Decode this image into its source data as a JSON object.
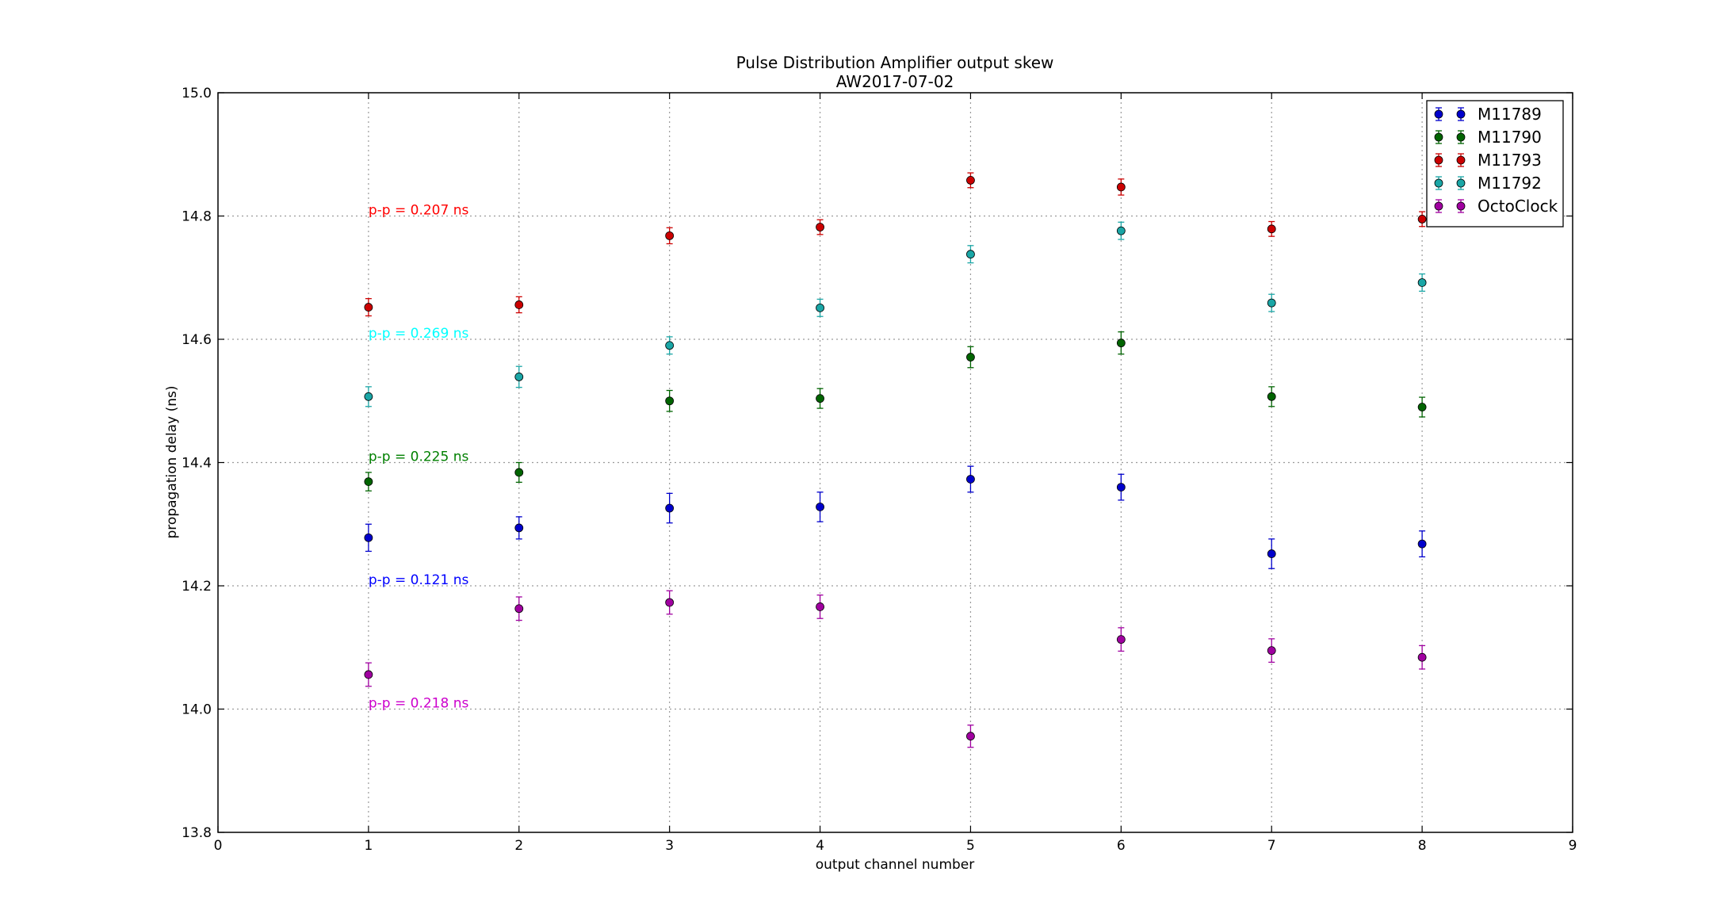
{
  "chart_data": {
    "type": "scatter",
    "title": "Pulse Distribution Amplifier output skew",
    "subtitle": "AW2017-07-02",
    "xlabel": "output channel number",
    "ylabel": "propagation delay (ns)",
    "xlim": [
      0,
      9
    ],
    "ylim": [
      13.8,
      15.0
    ],
    "xticks": [
      "0",
      "1",
      "2",
      "3",
      "4",
      "5",
      "6",
      "7",
      "8",
      "9"
    ],
    "yticks": [
      "13.8",
      "14.0",
      "14.2",
      "14.4",
      "14.6",
      "14.8",
      "15.0"
    ],
    "grid": true,
    "legend_position": "top-right",
    "x": [
      1,
      2,
      3,
      4,
      5,
      6,
      7,
      8
    ],
    "series": [
      {
        "name": "M11789",
        "color": "#0000cc",
        "values": [
          14.278,
          14.294,
          14.326,
          14.328,
          14.373,
          14.36,
          14.252,
          14.268
        ],
        "errors": [
          0.022,
          0.018,
          0.024,
          0.024,
          0.021,
          0.021,
          0.024,
          0.021
        ]
      },
      {
        "name": "M11790",
        "color": "#006400",
        "values": [
          14.369,
          14.384,
          14.5,
          14.504,
          14.571,
          14.594,
          14.507,
          14.49
        ],
        "errors": [
          0.015,
          0.016,
          0.017,
          0.016,
          0.017,
          0.018,
          0.016,
          0.016
        ]
      },
      {
        "name": "M11793",
        "color": "#cc0000",
        "values": [
          14.652,
          14.656,
          14.768,
          14.782,
          14.858,
          14.847,
          14.779,
          14.795
        ],
        "errors": [
          0.014,
          0.013,
          0.013,
          0.012,
          0.012,
          0.013,
          0.012,
          0.012
        ]
      },
      {
        "name": "M11792",
        "color": "#1aa6a6",
        "values": [
          14.507,
          14.539,
          14.59,
          14.651,
          14.738,
          14.776,
          14.659,
          14.692
        ],
        "errors": [
          0.016,
          0.017,
          0.014,
          0.014,
          0.014,
          0.014,
          0.014,
          0.014
        ]
      },
      {
        "name": "OctoClock",
        "color": "#a000a0",
        "values": [
          14.056,
          14.163,
          14.173,
          14.166,
          13.956,
          14.113,
          14.095,
          14.084
        ],
        "errors": [
          0.019,
          0.019,
          0.019,
          0.019,
          0.018,
          0.019,
          0.019,
          0.019
        ]
      }
    ],
    "annotations": [
      {
        "text": "p-p = 0.207 ns",
        "x": 1,
        "y": 14.8,
        "color": "#ff0000"
      },
      {
        "text": "p-p = 0.269 ns",
        "x": 1,
        "y": 14.6,
        "color": "#00ffff"
      },
      {
        "text": "p-p = 0.225 ns",
        "x": 1,
        "y": 14.4,
        "color": "#008000"
      },
      {
        "text": "p-p = 0.121 ns",
        "x": 1,
        "y": 14.2,
        "color": "#0000ff"
      },
      {
        "text": "p-p = 0.218 ns",
        "x": 1,
        "y": 14.0,
        "color": "#cc00cc"
      }
    ]
  }
}
